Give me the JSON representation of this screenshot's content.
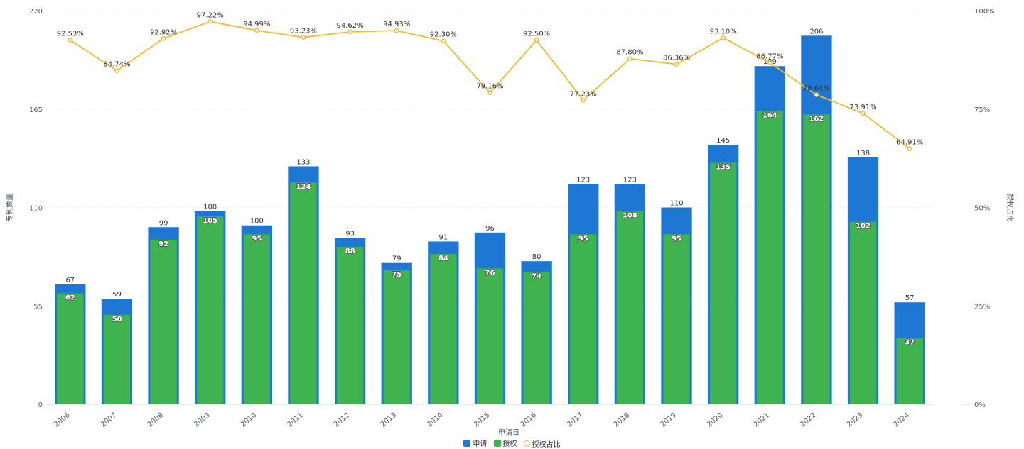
{
  "chart_data": {
    "type": "bar",
    "categories": [
      "2006",
      "2007",
      "2008",
      "2009",
      "2010",
      "2011",
      "2012",
      "2013",
      "2014",
      "2015",
      "2016",
      "2017",
      "2018",
      "2019",
      "2020",
      "2021",
      "2022",
      "2023",
      "2024"
    ],
    "series": [
      {
        "name": "申请",
        "type": "bar",
        "color": "#1f77d4",
        "values": [
          67,
          59,
          99,
          108,
          100,
          133,
          93,
          79,
          91,
          96,
          80,
          123,
          123,
          110,
          145,
          189,
          206,
          138,
          57
        ]
      },
      {
        "name": "授权",
        "type": "bar",
        "color": "#3fb34f",
        "values": [
          62,
          50,
          92,
          105,
          95,
          124,
          88,
          75,
          84,
          76,
          74,
          95,
          108,
          95,
          135,
          164,
          162,
          102,
          37
        ]
      },
      {
        "name": "授权占比",
        "type": "line",
        "color": "#f5b82e",
        "values": [
          92.53,
          84.74,
          92.92,
          97.22,
          94.99,
          93.23,
          94.62,
          94.93,
          92.3,
          79.16,
          92.5,
          77.23,
          87.8,
          86.36,
          93.1,
          86.77,
          78.64,
          73.91,
          64.91
        ],
        "labels": [
          "92.53%",
          "84.74%",
          "92.92%",
          "97.22%",
          "94.99%",
          "93.23%",
          "94.62%",
          "94.93%",
          "92.30%",
          "79.16%",
          "92.50%",
          "77.23%",
          "87.80%",
          "86.36%",
          "93.10%",
          "86.77%",
          "78.64%",
          "73.91%",
          "64.91%"
        ]
      }
    ],
    "xlabel": "申请日",
    "ylabel": "专利数量",
    "y2label": "授权占比",
    "ylim": [
      0,
      220
    ],
    "y2lim": [
      0,
      100
    ],
    "yticks": [
      "0",
      "55",
      "110",
      "165",
      "220"
    ],
    "y2ticks": [
      "0%",
      "25%",
      "50%",
      "75%",
      "100%"
    ],
    "grid": true,
    "legend_position": "bottom-center"
  }
}
